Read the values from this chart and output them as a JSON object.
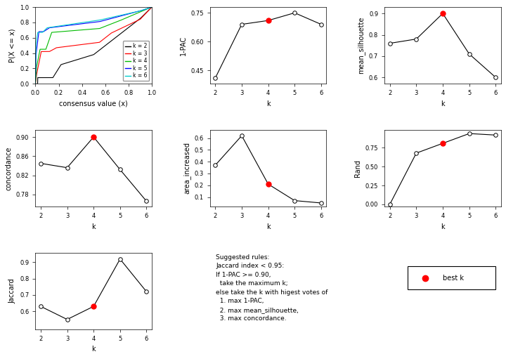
{
  "k_values": [
    2,
    3,
    4,
    5,
    6
  ],
  "pac_1minus": [
    0.41,
    0.69,
    0.71,
    0.75,
    0.69
  ],
  "mean_silhouette": [
    0.76,
    0.78,
    0.9,
    0.71,
    0.6
  ],
  "concordance": [
    0.845,
    0.836,
    0.9,
    0.832,
    0.766
  ],
  "area_increased": [
    0.37,
    0.62,
    0.21,
    0.07,
    0.05
  ],
  "rand": [
    0.0,
    0.68,
    0.81,
    0.94,
    0.92
  ],
  "jaccard": [
    0.63,
    0.55,
    0.63,
    0.92,
    0.72
  ],
  "best_k": 4,
  "cdf_colors": [
    "#000000",
    "#FF0000",
    "#00BB00",
    "#0000FF",
    "#00CCCC"
  ],
  "cdf_labels": [
    "k = 2",
    "k = 3",
    "k = 4",
    "k = 5",
    "k = 6"
  ],
  "annotation_text1": "Suggested rules:",
  "annotation_text2": "Jaccard index < 0.95:",
  "annotation_text3": "If 1-PAC >= 0.90,",
  "annotation_text4": "  take the maximum k;",
  "annotation_text5": "else take the k with higest votes of",
  "annotation_text6": "  1. max 1-PAC,",
  "annotation_text7": "  2. max mean_silhouette,",
  "annotation_text8": "  3. max concordance.",
  "bg_color": "#FFFFFF"
}
